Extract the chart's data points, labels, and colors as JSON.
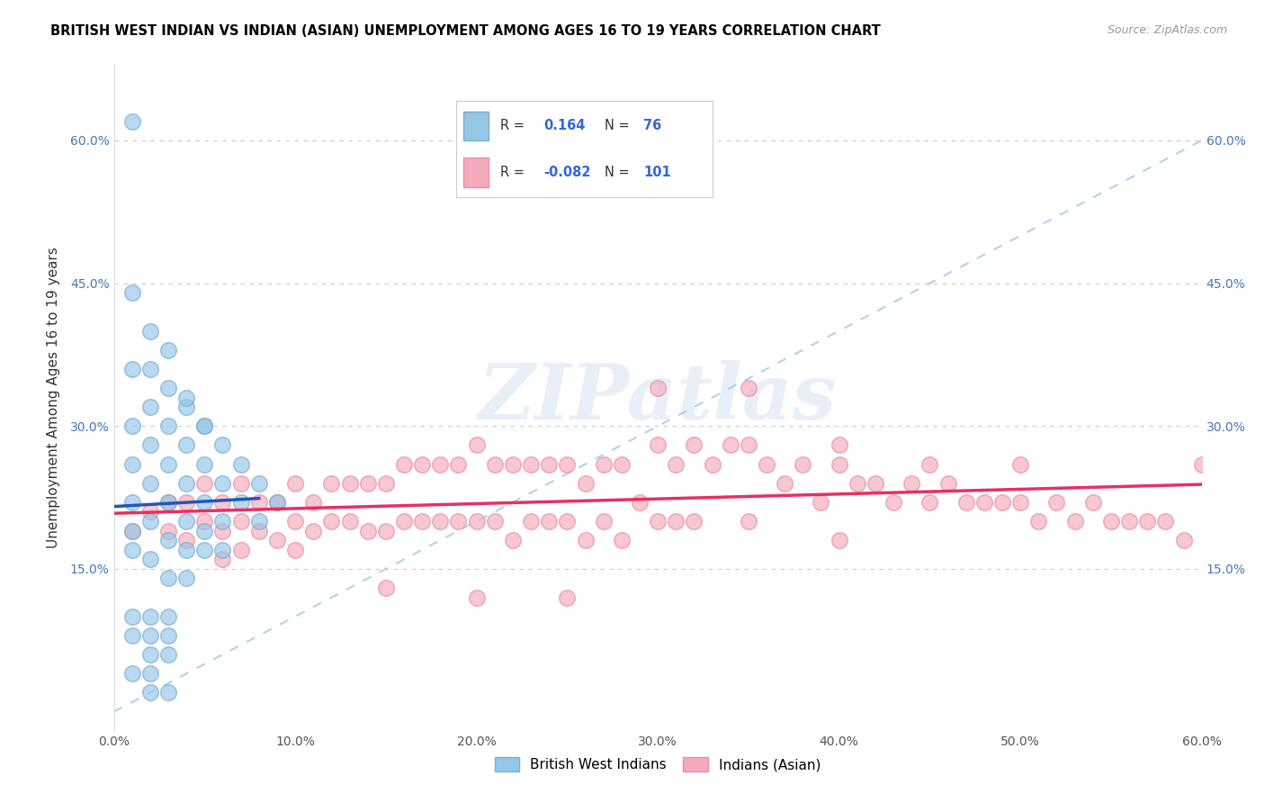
{
  "title": "BRITISH WEST INDIAN VS INDIAN (ASIAN) UNEMPLOYMENT AMONG AGES 16 TO 19 YEARS CORRELATION CHART",
  "source": "Source: ZipAtlas.com",
  "ylabel": "Unemployment Among Ages 16 to 19 years",
  "xlim": [
    0.0,
    0.6
  ],
  "ylim": [
    -0.02,
    0.68
  ],
  "xticks": [
    0.0,
    0.1,
    0.2,
    0.3,
    0.4,
    0.5,
    0.6
  ],
  "xticklabels": [
    "0.0%",
    "10.0%",
    "20.0%",
    "30.0%",
    "40.0%",
    "50.0%",
    "60.0%"
  ],
  "yticks": [
    0.15,
    0.3,
    0.45,
    0.6
  ],
  "yticklabels": [
    "15.0%",
    "30.0%",
    "45.0%",
    "60.0%"
  ],
  "blue_color": "#94C6E8",
  "pink_color": "#F4AABB",
  "blue_edge_color": "#7AAED4",
  "pink_edge_color": "#E890A8",
  "blue_line_color": "#2255BB",
  "pink_line_color": "#E83060",
  "diag_line_color": "#AACCEE",
  "watermark": "ZIPatlas",
  "blue_scatter_x": [
    0.01,
    0.01,
    0.01,
    0.01,
    0.01,
    0.01,
    0.01,
    0.01,
    0.02,
    0.02,
    0.02,
    0.02,
    0.02,
    0.02,
    0.02,
    0.03,
    0.03,
    0.03,
    0.03,
    0.03,
    0.03,
    0.04,
    0.04,
    0.04,
    0.04,
    0.04,
    0.05,
    0.05,
    0.05,
    0.05,
    0.06,
    0.06,
    0.06,
    0.07,
    0.07,
    0.08,
    0.08,
    0.09,
    0.01,
    0.02,
    0.03,
    0.02,
    0.03,
    0.01,
    0.02,
    0.04,
    0.05,
    0.03,
    0.04,
    0.01,
    0.02,
    0.03,
    0.05,
    0.06,
    0.02,
    0.03
  ],
  "blue_scatter_y": [
    0.62,
    0.44,
    0.36,
    0.3,
    0.26,
    0.22,
    0.19,
    0.17,
    0.4,
    0.36,
    0.32,
    0.28,
    0.24,
    0.2,
    0.16,
    0.38,
    0.34,
    0.3,
    0.26,
    0.22,
    0.18,
    0.32,
    0.28,
    0.24,
    0.2,
    0.17,
    0.3,
    0.26,
    0.22,
    0.19,
    0.28,
    0.24,
    0.2,
    0.26,
    0.22,
    0.24,
    0.2,
    0.22,
    0.08,
    0.08,
    0.08,
    0.06,
    0.06,
    0.04,
    0.04,
    0.33,
    0.3,
    0.14,
    0.14,
    0.1,
    0.1,
    0.1,
    0.17,
    0.17,
    0.02,
    0.02
  ],
  "pink_scatter_x": [
    0.01,
    0.02,
    0.03,
    0.03,
    0.04,
    0.04,
    0.05,
    0.05,
    0.06,
    0.06,
    0.06,
    0.07,
    0.07,
    0.07,
    0.08,
    0.08,
    0.09,
    0.09,
    0.1,
    0.1,
    0.1,
    0.11,
    0.11,
    0.12,
    0.12,
    0.13,
    0.13,
    0.14,
    0.14,
    0.15,
    0.15,
    0.16,
    0.16,
    0.17,
    0.17,
    0.18,
    0.18,
    0.19,
    0.19,
    0.2,
    0.2,
    0.21,
    0.21,
    0.22,
    0.22,
    0.23,
    0.23,
    0.24,
    0.24,
    0.25,
    0.25,
    0.26,
    0.26,
    0.27,
    0.27,
    0.28,
    0.28,
    0.29,
    0.3,
    0.3,
    0.31,
    0.31,
    0.32,
    0.32,
    0.33,
    0.34,
    0.35,
    0.35,
    0.36,
    0.37,
    0.38,
    0.39,
    0.4,
    0.4,
    0.41,
    0.42,
    0.43,
    0.44,
    0.45,
    0.46,
    0.47,
    0.48,
    0.49,
    0.5,
    0.51,
    0.52,
    0.53,
    0.54,
    0.55,
    0.56,
    0.57,
    0.58,
    0.59,
    0.6,
    0.15,
    0.2,
    0.25,
    0.3,
    0.35,
    0.4,
    0.45,
    0.5
  ],
  "pink_scatter_y": [
    0.19,
    0.21,
    0.22,
    0.19,
    0.22,
    0.18,
    0.24,
    0.2,
    0.22,
    0.19,
    0.16,
    0.24,
    0.2,
    0.17,
    0.22,
    0.19,
    0.22,
    0.18,
    0.24,
    0.2,
    0.17,
    0.22,
    0.19,
    0.24,
    0.2,
    0.24,
    0.2,
    0.24,
    0.19,
    0.24,
    0.19,
    0.26,
    0.2,
    0.26,
    0.2,
    0.26,
    0.2,
    0.26,
    0.2,
    0.28,
    0.2,
    0.26,
    0.2,
    0.26,
    0.18,
    0.26,
    0.2,
    0.26,
    0.2,
    0.26,
    0.2,
    0.24,
    0.18,
    0.26,
    0.2,
    0.26,
    0.18,
    0.22,
    0.28,
    0.2,
    0.26,
    0.2,
    0.28,
    0.2,
    0.26,
    0.28,
    0.28,
    0.2,
    0.26,
    0.24,
    0.26,
    0.22,
    0.28,
    0.18,
    0.24,
    0.24,
    0.22,
    0.24,
    0.22,
    0.24,
    0.22,
    0.22,
    0.22,
    0.22,
    0.2,
    0.22,
    0.2,
    0.22,
    0.2,
    0.2,
    0.2,
    0.2,
    0.18,
    0.26,
    0.13,
    0.12,
    0.12,
    0.34,
    0.34,
    0.26,
    0.26,
    0.26
  ]
}
